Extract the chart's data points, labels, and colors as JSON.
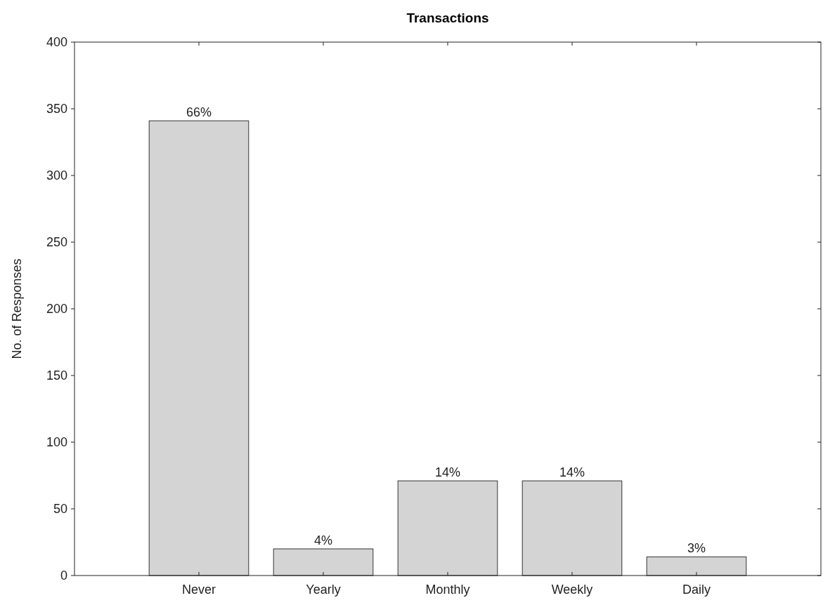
{
  "chart_data": {
    "type": "bar",
    "title": "Transactions",
    "ylabel": "No. of Responses",
    "categories": [
      "Never",
      "Yearly",
      "Monthly",
      "Weekly",
      "Daily"
    ],
    "values": [
      341,
      20,
      71,
      71,
      14
    ],
    "annotations": [
      {
        "text": "66%",
        "x": "Never",
        "y": 341
      },
      {
        "text": "4%",
        "x": "Yearly",
        "y": 20
      },
      {
        "text": "14%",
        "x": "Monthly",
        "y": 71
      },
      {
        "text": "14%",
        "x": "Weekly",
        "y": 71
      },
      {
        "text": "3%",
        "x": "Daily",
        "y": 14
      }
    ],
    "color": "#d4d4d4",
    "ylim": [
      0,
      400
    ],
    "yticks": [
      0,
      50,
      100,
      150,
      200,
      250,
      300,
      350,
      400
    ],
    "grid": false
  }
}
